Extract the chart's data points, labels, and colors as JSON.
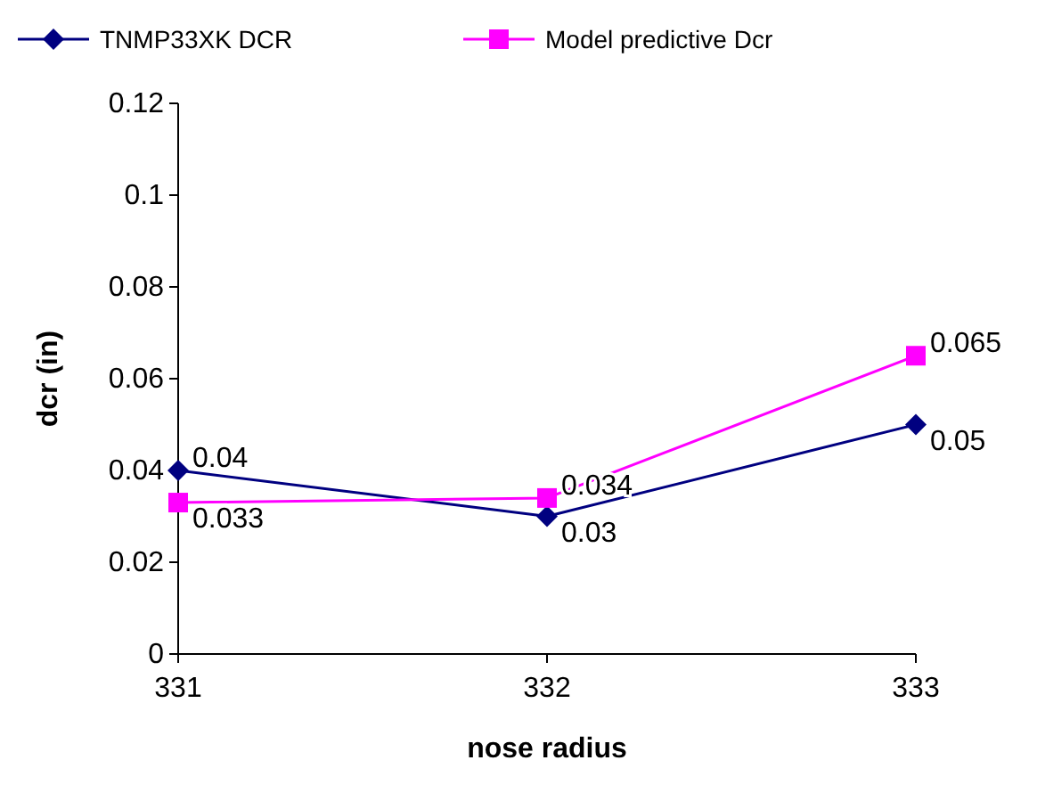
{
  "chart_data": {
    "type": "line",
    "xlabel": "nose radius",
    "ylabel": "dcr (in)",
    "categories": [
      "331",
      "332",
      "333"
    ],
    "series": [
      {
        "name": "TNMP33XK DCR",
        "color": "#000080",
        "marker": "diamond",
        "values": [
          0.04,
          0.03,
          0.05
        ]
      },
      {
        "name": "Model predictive Dcr",
        "color": "#ff00ff",
        "marker": "square",
        "values": [
          0.033,
          0.034,
          0.065
        ]
      }
    ],
    "ylim": [
      0,
      0.12
    ],
    "yticks": [
      0,
      0.02,
      0.04,
      0.06,
      0.08,
      0.1,
      0.12
    ],
    "legend": "top",
    "data_labels": true,
    "line_style": "solid"
  }
}
